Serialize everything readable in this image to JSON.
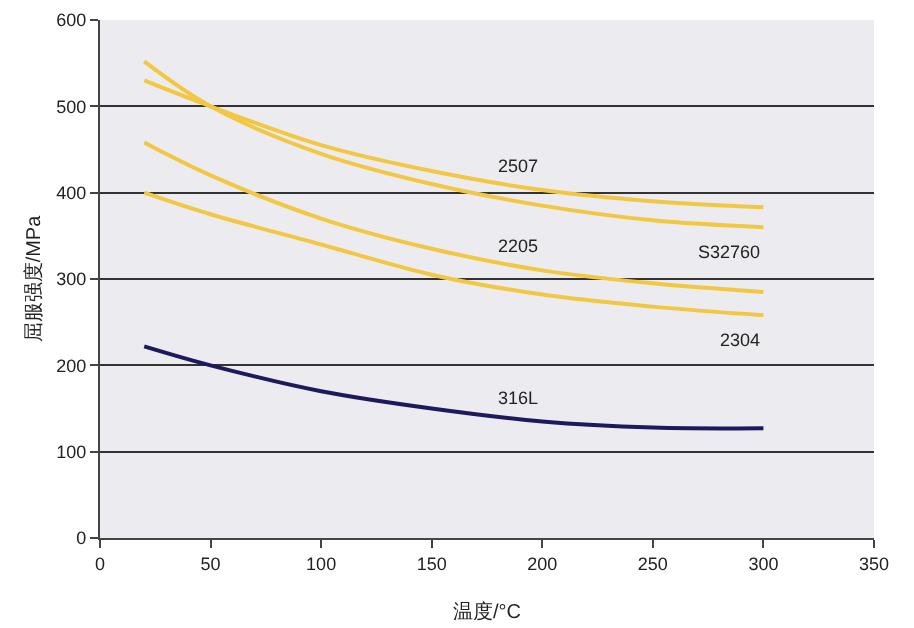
{
  "chart_data": {
    "type": "line",
    "xlabel": "温度/°C",
    "ylabel": "屈服强度/MPa",
    "x": [
      20,
      50,
      100,
      150,
      200,
      250,
      300
    ],
    "series": [
      {
        "name": "2507",
        "color": "#f2c744",
        "values": [
          530,
          500,
          455,
          425,
          403,
          390,
          383
        ]
      },
      {
        "name": "S32760",
        "color": "#f2c744",
        "values": [
          552,
          500,
          445,
          410,
          385,
          368,
          360
        ]
      },
      {
        "name": "2205",
        "color": "#f2c744",
        "values": [
          458,
          420,
          370,
          335,
          310,
          295,
          285
        ]
      },
      {
        "name": "2304",
        "color": "#f2c744",
        "values": [
          400,
          375,
          340,
          305,
          282,
          268,
          258
        ]
      },
      {
        "name": "316L",
        "color": "#1c1a5c",
        "values": [
          222,
          200,
          170,
          150,
          135,
          128,
          127
        ]
      }
    ],
    "xlim": [
      0,
      350
    ],
    "xticks": [
      0,
      50,
      100,
      150,
      200,
      250,
      300,
      350
    ],
    "ylim": [
      0,
      600
    ],
    "yticks": [
      0,
      100,
      200,
      300,
      400,
      500,
      600
    ],
    "grid": "y",
    "legend": false,
    "marker": "none",
    "line_style": "solid"
  }
}
